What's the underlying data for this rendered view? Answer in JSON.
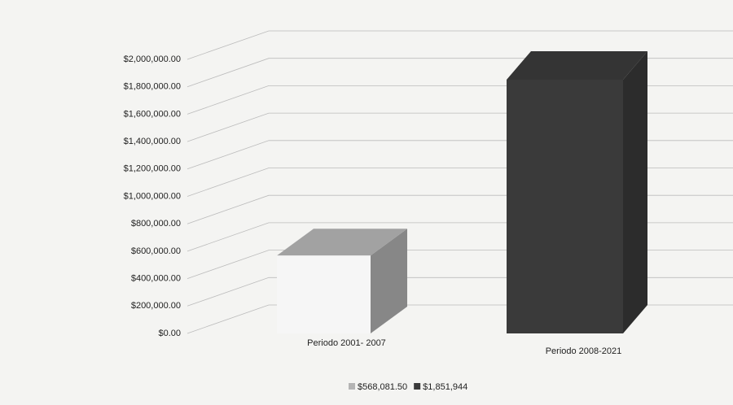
{
  "chart_data": {
    "type": "bar3d",
    "categories": [
      "Periodo 2001- 2007",
      "Periodo 2008-2021"
    ],
    "series": [
      {
        "name": "$568,081.50",
        "color": "#b4b4b4",
        "values": [
          568081.5,
          null
        ]
      },
      {
        "name": "$1,851,944",
        "color": "#3a3a3a",
        "values": [
          null,
          1851944
        ]
      }
    ],
    "ylim": [
      0,
      2000000
    ],
    "yticks": [
      {
        "value": 0,
        "label": "$0.00"
      },
      {
        "value": 200000,
        "label": "$200,000.00"
      },
      {
        "value": 400000,
        "label": "$400,000.00"
      },
      {
        "value": 600000,
        "label": "$600,000.00"
      },
      {
        "value": 800000,
        "label": "$800,000.00"
      },
      {
        "value": 1000000,
        "label": "$1,000,000.00"
      },
      {
        "value": 1200000,
        "label": "$1,200,000.00"
      },
      {
        "value": 1400000,
        "label": "$1,400,000.00"
      },
      {
        "value": 1600000,
        "label": "$1,600,000.00"
      },
      {
        "value": 1800000,
        "label": "$1,800,000.00"
      },
      {
        "value": 2000000,
        "label": "$2,000,000.00"
      }
    ],
    "grid": true,
    "legend": "bottom"
  }
}
